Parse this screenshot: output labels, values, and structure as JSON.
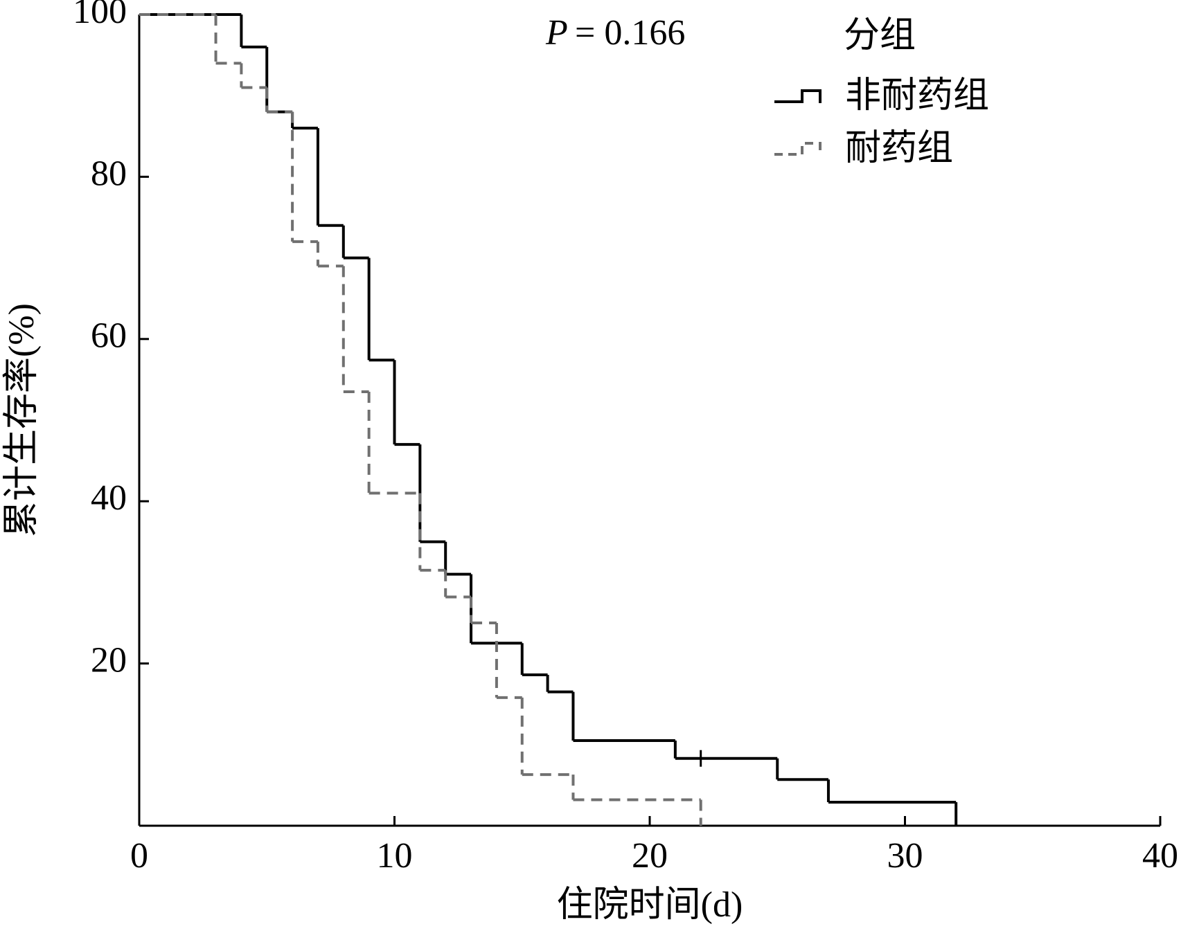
{
  "chart_data": {
    "type": "step",
    "annotation": {
      "label": "P",
      "text": "= 0.166"
    },
    "legend_title": "分组",
    "x_label": "住院时间(d)",
    "y_label": "累计生存率(%)",
    "xlim": [
      0,
      40
    ],
    "xticks": [
      0,
      10,
      20,
      30,
      40
    ],
    "ylim": [
      0,
      100
    ],
    "yticks": [
      20,
      40,
      60,
      80,
      100
    ],
    "legend": "top-right",
    "series": [
      {
        "name": "非耐药组",
        "color": "#000000",
        "dashed": false,
        "x": [
          0,
          4,
          5,
          6,
          7,
          8,
          9,
          10,
          11,
          12,
          13,
          15,
          16,
          17,
          21,
          25,
          27,
          32
        ],
        "values": [
          100,
          96,
          88,
          86,
          74,
          70,
          57.4,
          47,
          35,
          31,
          22.5,
          18.6,
          16.5,
          10.5,
          8.3,
          5.7,
          2.9,
          0
        ],
        "censored_x": [
          22
        ]
      },
      {
        "name": "耐药组",
        "color": "#707070",
        "dashed": true,
        "x": [
          0,
          3,
          4,
          5,
          6,
          7,
          8,
          9,
          11,
          12,
          13,
          14,
          15,
          17,
          22
        ],
        "values": [
          100,
          94,
          91,
          88,
          72,
          69,
          53.5,
          41,
          31.5,
          28.2,
          25,
          15.8,
          6.3,
          3.2,
          0
        ],
        "censored_x": []
      }
    ]
  }
}
